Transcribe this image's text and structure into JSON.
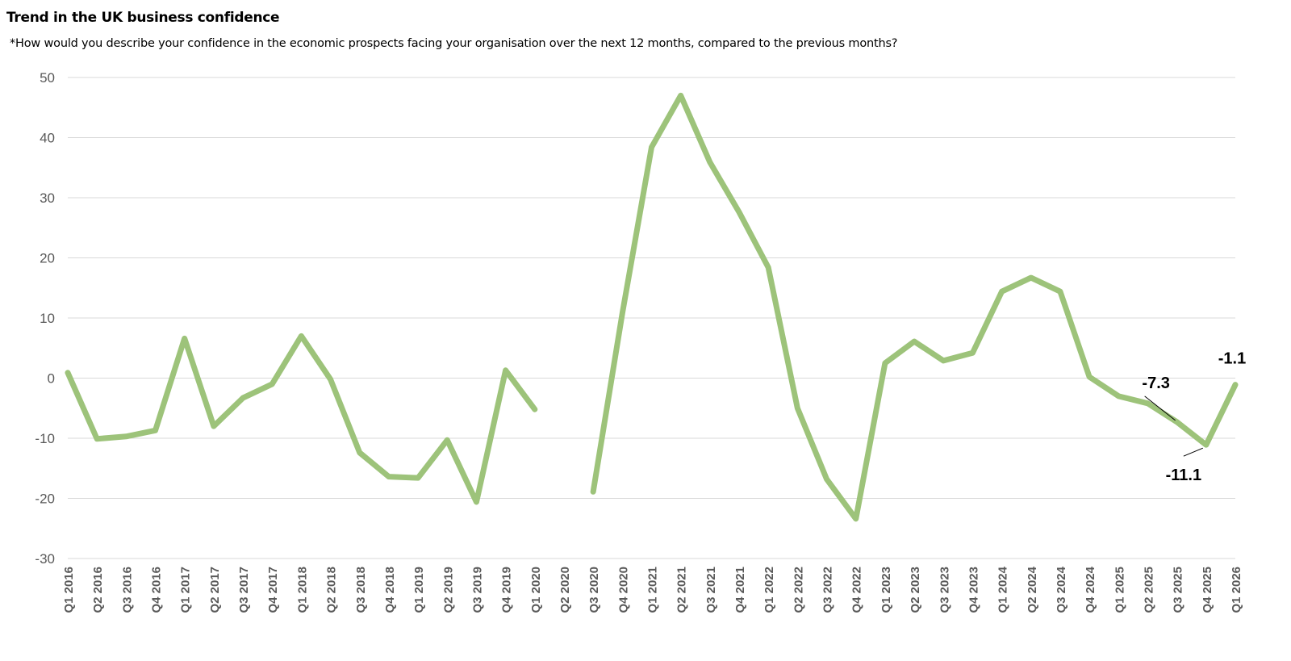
{
  "chart_data": {
    "type": "line",
    "title": "Trend in the UK business confidence",
    "subtitle": "*How would you describe your confidence in the economic prospects facing your organisation over the next 12 months, compared to the previous months?",
    "xlabel": "",
    "ylabel": "",
    "ylim": [
      -30,
      50
    ],
    "yticks": [
      50,
      40,
      30,
      20,
      10,
      0,
      -10,
      -20,
      -30
    ],
    "grid": true,
    "line_color": "#9dc37a",
    "categories": [
      "Q1 2016",
      "Q2 2016",
      "Q3 2016",
      "Q4 2016",
      "Q1 2017",
      "Q2 2017",
      "Q3 2017",
      "Q4 2017",
      "Q1 2018",
      "Q2 2018",
      "Q3 2018",
      "Q4 2018",
      "Q1 2019",
      "Q2 2019",
      "Q3 2019",
      "Q4 2019",
      "Q1 2020",
      "Q2 2020",
      "Q3 2020",
      "Q4 2020",
      "Q1 2021",
      "Q2 2021",
      "Q3 2021",
      "Q4 2021",
      "Q1 2022",
      "Q2 2022",
      "Q3 2022",
      "Q4 2022",
      "Q1 2023",
      "Q2 2023",
      "Q3 2023",
      "Q4 2023",
      "Q1 2024",
      "Q2 2024",
      "Q3 2024",
      "Q4 2024",
      "Q1 2025",
      "Q2 2025",
      "Q3 2025",
      "Q4 2025",
      "Q1 2026"
    ],
    "values": [
      0.9,
      -10.1,
      -9.7,
      -8.7,
      6.6,
      -8.0,
      -3.3,
      -1.0,
      7.0,
      -0.2,
      -12.4,
      -16.4,
      -16.6,
      -10.3,
      -20.6,
      1.3,
      -5.2,
      null,
      -18.9,
      10.8,
      38.4,
      47.0,
      35.9,
      27.6,
      18.4,
      -5.0,
      -16.8,
      -23.4,
      2.5,
      6.1,
      2.9,
      4.2,
      14.4,
      16.7,
      14.4,
      0.2,
      -3.0,
      -4.2,
      -7.3,
      -11.1,
      -1.1
    ],
    "annotations": [
      {
        "category": "Q3 2025",
        "label": "-7.3"
      },
      {
        "category": "Q4 2025",
        "label": "-11.1"
      },
      {
        "category": "Q1 2026",
        "label": "-1.1"
      }
    ]
  }
}
